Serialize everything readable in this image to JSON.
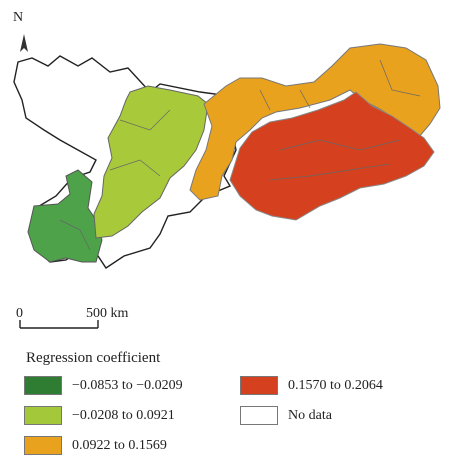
{
  "north_label": "N",
  "scale": {
    "zero": "0",
    "end": "500 km"
  },
  "legend": {
    "title": "Regression coefficient",
    "items": [
      {
        "label": "−0.0853 to −0.0209",
        "color": "#2f7d32"
      },
      {
        "label": "−0.0208 to 0.0921",
        "color": "#a3c93a"
      },
      {
        "label": "0.0922 to 0.1569",
        "color": "#e9a21d"
      },
      {
        "label": "0.1570 to 0.2064",
        "color": "#d5401f"
      },
      {
        "label": "No data",
        "color": "#ffffff"
      }
    ]
  }
}
